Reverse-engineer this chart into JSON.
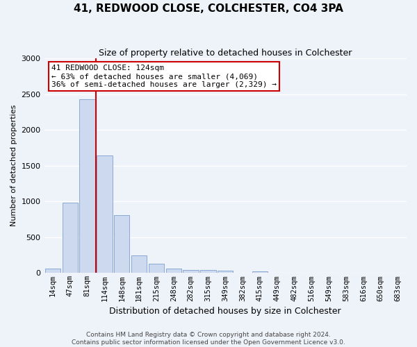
{
  "title": "41, REDWOOD CLOSE, COLCHESTER, CO4 3PA",
  "subtitle": "Size of property relative to detached houses in Colchester",
  "xlabel": "Distribution of detached houses by size in Colchester",
  "ylabel": "Number of detached properties",
  "bar_color": "#ccd9ee",
  "bar_edge_color": "#8aaad4",
  "categories": [
    "14sqm",
    "47sqm",
    "81sqm",
    "114sqm",
    "148sqm",
    "181sqm",
    "215sqm",
    "248sqm",
    "282sqm",
    "315sqm",
    "349sqm",
    "382sqm",
    "415sqm",
    "449sqm",
    "482sqm",
    "516sqm",
    "549sqm",
    "583sqm",
    "616sqm",
    "650sqm",
    "683sqm"
  ],
  "values": [
    60,
    980,
    2430,
    1640,
    810,
    250,
    130,
    60,
    45,
    40,
    35,
    0,
    25,
    0,
    0,
    0,
    0,
    0,
    0,
    0,
    0
  ],
  "ylim": [
    0,
    3000
  ],
  "yticks": [
    0,
    500,
    1000,
    1500,
    2000,
    2500,
    3000
  ],
  "red_line_x": 2.5,
  "annotation_text": "41 REDWOOD CLOSE: 124sqm\n← 63% of detached houses are smaller (4,069)\n36% of semi-detached houses are larger (2,329) →",
  "footnote": "Contains HM Land Registry data © Crown copyright and database right 2024.\nContains public sector information licensed under the Open Government Licence v3.0.",
  "background_color": "#eef2f9",
  "grid_color": "#ffffff",
  "annotation_box_facecolor": "#ffffff",
  "annotation_box_edgecolor": "#cc0000",
  "title_fontsize": 11,
  "subtitle_fontsize": 9,
  "ylabel_fontsize": 8,
  "xlabel_fontsize": 9,
  "tick_fontsize": 7.5,
  "annotation_fontsize": 8
}
